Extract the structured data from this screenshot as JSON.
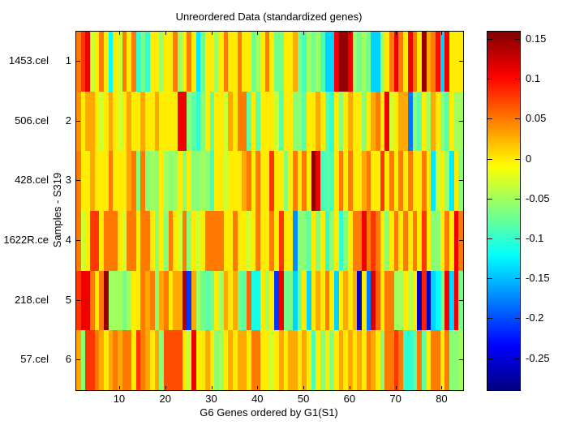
{
  "title": "Unreordered Data (standardized genes)",
  "axes": {
    "x_label": "G6 Genes ordered by G1(S1)",
    "x_ticks": [
      "10",
      "20",
      "30",
      "40",
      "50",
      "60",
      "70",
      "80"
    ],
    "y_label": "Samples - S319",
    "y_ticks": [
      "1",
      "2",
      "3",
      "4",
      "5",
      "6"
    ],
    "sample_labels": [
      "1453.cel",
      "506.cel",
      "428.cel",
      "1622R.ce",
      "218.cel",
      "57.cel"
    ]
  },
  "colorbar": {
    "tick_labels": [
      "0.15",
      "0.1",
      "0.05",
      "0",
      "-0.05",
      "-0.1",
      "-0.15",
      "-0.2",
      "-0.25"
    ],
    "tick_values": [
      0.15,
      0.1,
      0.05,
      0,
      -0.05,
      -0.1,
      -0.15,
      -0.2,
      -0.25
    ],
    "vmin": -0.289,
    "vmax": 0.16,
    "colormap": "jet"
  },
  "chart_data": {
    "type": "heatmap",
    "title": "Unreordered Data (standardized genes)",
    "xlabel": "G6 Genes ordered by G1(S1)",
    "ylabel": "Samples - S319",
    "n_cols": 84,
    "n_rows": 6,
    "x_ticks": [
      10,
      20,
      30,
      40,
      50,
      60,
      70,
      80
    ],
    "colormap": "jet",
    "clim": [
      -0.289,
      0.16
    ],
    "legend_position": "right-colorbar",
    "grid": false,
    "rows": [
      {
        "index": 1,
        "sample": "1453.cel",
        "values": [
          0.05,
          0.08,
          0.11,
          -0.03,
          0,
          0.05,
          0,
          -0.12,
          0,
          -0.03,
          0.05,
          0,
          0.05,
          -0.1,
          -0.07,
          -0.1,
          0,
          0,
          -0.05,
          0,
          0,
          0.05,
          -0.05,
          0,
          0.05,
          0,
          -0.13,
          -0.07,
          0,
          0,
          -0.05,
          0,
          0.05,
          0,
          0,
          0.05,
          0,
          0,
          -0.07,
          -0.05,
          0,
          0.05,
          0,
          -0.07,
          -0.07,
          0,
          0,
          0.03,
          -0.07,
          -0.09,
          -0.05,
          -0.07,
          -0.05,
          -0.09,
          -0.14,
          -0.14,
          0.11,
          0.15,
          0.15,
          0.11,
          -0.05,
          -0.07,
          -0.05,
          -0.07,
          -0.14,
          -0.14,
          -0.05,
          0,
          0.05,
          0.11,
          0.05,
          0,
          0.11,
          0.05,
          0,
          0.15,
          0.03,
          0.05,
          0.1,
          -0.14,
          0.11,
          0,
          0,
          0
        ]
      },
      {
        "index": 2,
        "sample": "506.cel",
        "values": [
          0.04,
          0,
          0.03,
          0.03,
          0,
          -0.03,
          0,
          0.03,
          0,
          -0.03,
          0,
          0.03,
          0,
          0,
          0.03,
          0,
          0,
          0.03,
          0,
          0,
          0,
          0,
          0.11,
          0.11,
          -0.06,
          -0.08,
          -0.1,
          -0.06,
          0,
          -0.08,
          0,
          0,
          -0.03,
          0.03,
          0,
          0.05,
          0.05,
          -0.08,
          0,
          -0.08,
          0,
          0,
          0,
          -0.03,
          -0.08,
          0,
          0,
          -0.06,
          -0.06,
          -0.08,
          0,
          0,
          0.03,
          0,
          -0.08,
          -0.1,
          0,
          -0.06,
          0,
          0.03,
          0,
          0,
          -0.06,
          0,
          0.03,
          0.05,
          0,
          0.11,
          -0.03,
          0,
          0.03,
          0.03,
          -0.18,
          -0.06,
          -0.08,
          0,
          -0.05,
          0.03,
          0,
          -0.06,
          -0.08,
          0,
          -0.05,
          -0.05
        ]
      },
      {
        "index": 3,
        "sample": "428.cel",
        "values": [
          0.05,
          0,
          0,
          0.03,
          0,
          0,
          0,
          0.05,
          0,
          0,
          0,
          0.03,
          0.05,
          -0.06,
          0.05,
          -0.06,
          -0.05,
          -0.06,
          0,
          -0.05,
          -0.06,
          -0.05,
          0,
          -0.06,
          0,
          -0.06,
          -0.06,
          -0.05,
          -0.06,
          -0.09,
          0,
          0,
          -0.03,
          0,
          0,
          0,
          0.03,
          0.05,
          0,
          0.05,
          0,
          0,
          0.08,
          0,
          0,
          -0.06,
          0,
          0.05,
          0,
          0.05,
          0,
          0.15,
          0.11,
          -0.09,
          -0.08,
          -0.09,
          0,
          0.05,
          0,
          0.05,
          0,
          0,
          0.03,
          0.05,
          0,
          0,
          0.08,
          0,
          0.05,
          0,
          0.05,
          0,
          0.05,
          0,
          0,
          0.05,
          0,
          -0.13,
          -0.03,
          0,
          -0.05,
          -0.13,
          0,
          -0.06
        ]
      },
      {
        "index": 4,
        "sample": "1622R.ce",
        "values": [
          0.05,
          -0.03,
          0,
          0.08,
          0.08,
          0,
          0.05,
          0.05,
          0.05,
          0,
          -0.03,
          0.05,
          0.05,
          0,
          0.05,
          0.05,
          0,
          -0.06,
          0,
          -0.06,
          0.05,
          0,
          -0.03,
          0.05,
          -0.06,
          0,
          -0.03,
          0,
          0.05,
          0.05,
          0.05,
          0.05,
          0,
          0,
          0.05,
          0,
          0,
          -0.03,
          0,
          0.05,
          0,
          0,
          0.05,
          0,
          0.08,
          0,
          0,
          -0.17,
          -0.06,
          -0.06,
          -0.08,
          0,
          -0.06,
          0,
          -0.1,
          -0.06,
          0,
          -0.1,
          -0.06,
          0,
          0.05,
          0.05,
          0.11,
          0.05,
          0.08,
          0.05,
          0,
          -0.06,
          0,
          0.05,
          0,
          0.05,
          0,
          0.05,
          0,
          0.08,
          0,
          -0.06,
          -0.06,
          0,
          0.05,
          0,
          0.11,
          0.05
        ]
      },
      {
        "index": 5,
        "sample": "218.cel",
        "values": [
          0.08,
          0.11,
          0.11,
          0.05,
          0,
          0.05,
          0.15,
          -0.05,
          -0.05,
          -0.05,
          -0.07,
          -0.05,
          0,
          0,
          0.05,
          0.03,
          0.05,
          -0.06,
          0.03,
          0.05,
          0,
          0.03,
          0.03,
          0.14,
          -0.21,
          0.03,
          -0.05,
          -0.07,
          -0.08,
          -0.07,
          0,
          -0.05,
          0.03,
          0,
          0.03,
          -0.07,
          -0.08,
          0.06,
          -0.11,
          -0.11,
          0,
          -0.05,
          0,
          -0.21,
          0.11,
          -0.07,
          -0.07,
          -0.14,
          -0.07,
          0,
          -0.14,
          0,
          0.03,
          0,
          0.05,
          0,
          -0.14,
          0,
          0.03,
          0,
          0.03,
          -0.26,
          0,
          -0.18,
          0.12,
          0.06,
          0,
          0.05,
          0.05,
          -0.05,
          -0.05,
          0,
          -0.04,
          0,
          -0.26,
          0.09,
          -0.26,
          -0.14,
          -0.12,
          -0.07,
          0.11,
          -0.14,
          0.11,
          -0.07
        ]
      },
      {
        "index": 6,
        "sample": "57.cel",
        "values": [
          0.03,
          -0.06,
          0.08,
          0.08,
          0.05,
          0.03,
          0,
          0.03,
          0.05,
          0.03,
          0.05,
          0.05,
          0,
          0.08,
          0.05,
          0.03,
          0,
          0.03,
          -0.06,
          0.07,
          0.07,
          0.07,
          0.07,
          0,
          -0.03,
          0.11,
          0,
          0,
          0.03,
          0,
          -0.06,
          -0.05,
          0,
          0.03,
          0,
          0.03,
          0.03,
          0,
          0.05,
          0.05,
          0,
          0,
          -0.03,
          0,
          0.03,
          0,
          0.03,
          0.03,
          0,
          0.03,
          0,
          -0.09,
          0,
          -0.06,
          0,
          -0.06,
          0,
          0.03,
          0,
          0.03,
          0,
          0.03,
          0,
          0.05,
          0.03,
          0,
          -0.06,
          0.05,
          0.05,
          0.08,
          0.05,
          -0.1,
          -0.1,
          -0.08,
          0.05,
          -0.08,
          0,
          0.05,
          0.05,
          0,
          0.05,
          -0.06,
          -0.06,
          -0.05
        ]
      }
    ]
  }
}
